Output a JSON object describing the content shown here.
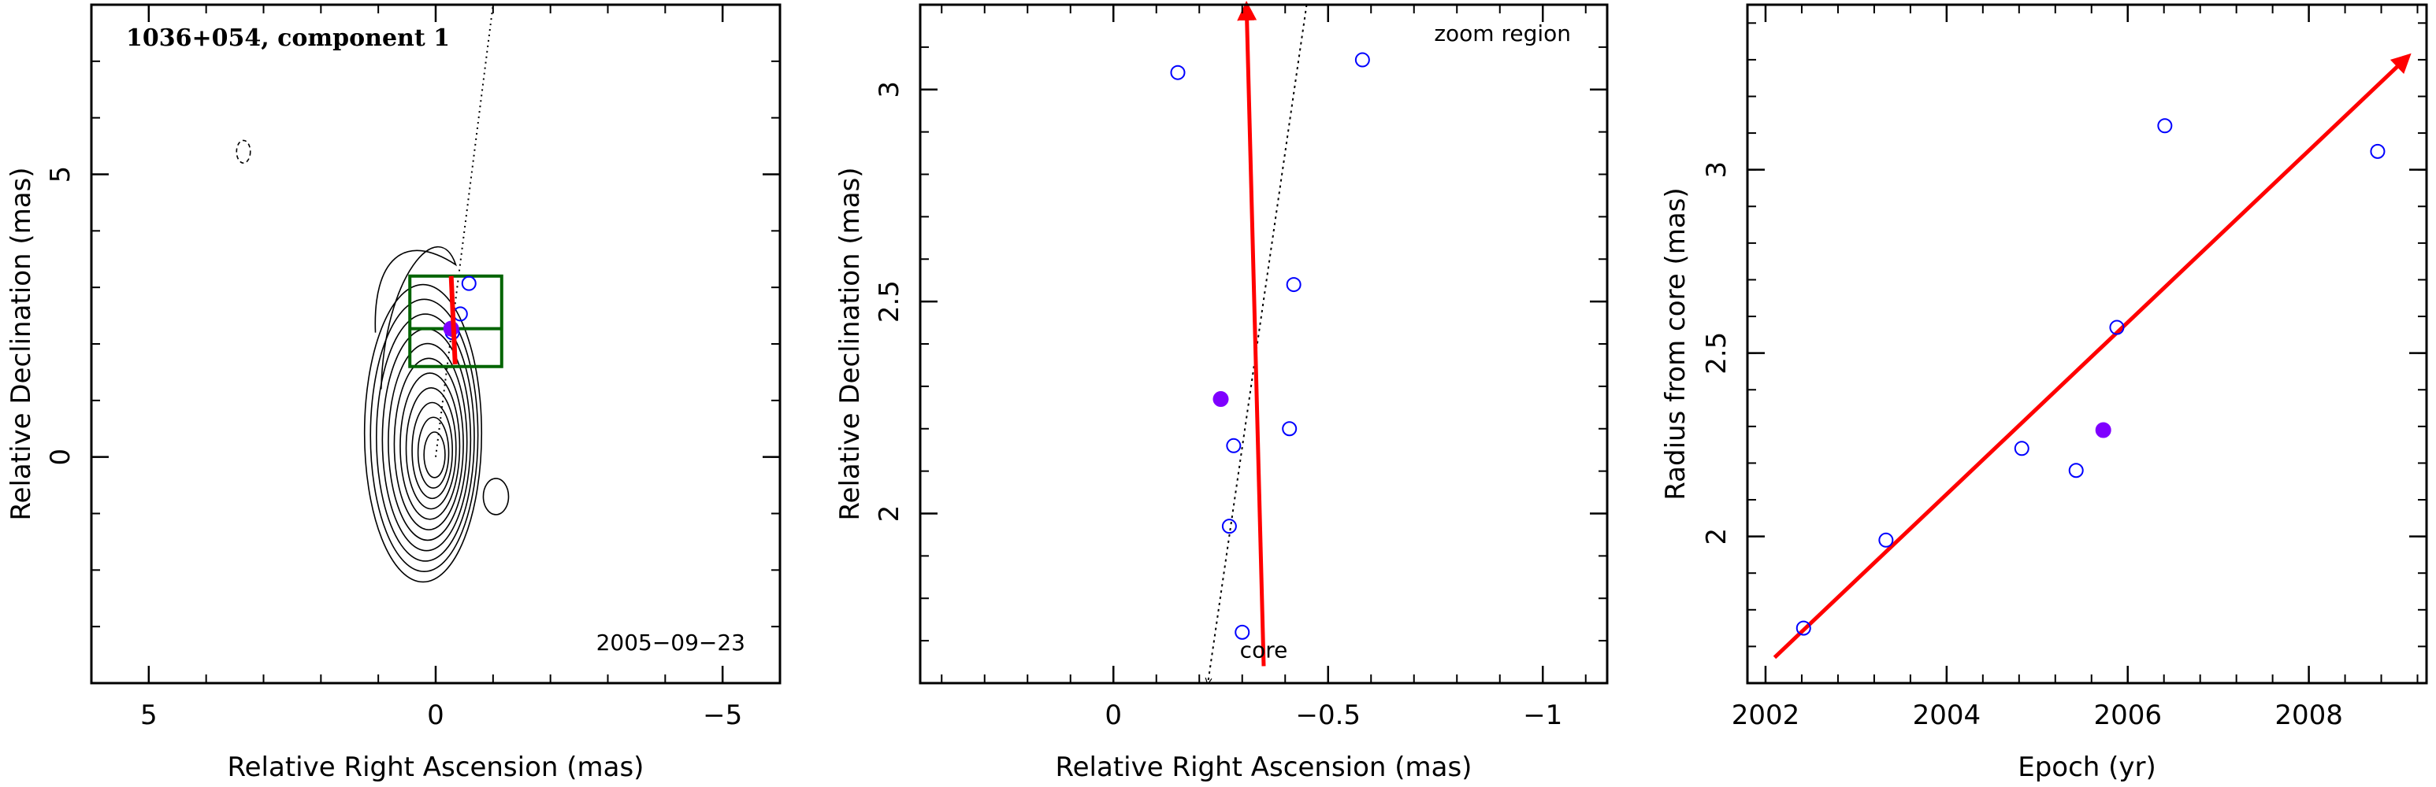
{
  "colors": {
    "axis": "#000000",
    "arrow": "#ff0000",
    "open_point": "#0000ff",
    "filled_point": "#7f00ff",
    "box": "#006400",
    "contour": "#000000"
  },
  "chart_data": [
    {
      "type": "contour",
      "title": "1036+054, component 1",
      "annotation": "2005−09−23",
      "xlabel": "Relative Right Ascension (mas)",
      "ylabel": "Relative Declination (mas)",
      "xlim": [
        6,
        -6
      ],
      "ylim": [
        -4,
        8
      ],
      "xticks": [
        5,
        0,
        -5
      ],
      "yticks": [
        0,
        5
      ],
      "x_tick_labels": [
        "5",
        "0",
        "−5"
      ],
      "y_tick_labels": [
        "0",
        "5"
      ],
      "contour_levels": 11,
      "jet_line": {
        "from": [
          0,
          0
        ],
        "to": [
          -1.0,
          8.0
        ]
      },
      "zoom_box": {
        "ra": [
          0.45,
          -1.15
        ],
        "dec": [
          1.6,
          3.2
        ],
        "mid_dec": 2.27
      },
      "motion_arrow": {
        "from": [
          -0.34,
          1.64
        ],
        "to": [
          -0.27,
          3.2
        ]
      },
      "points": [
        {
          "ra": -0.58,
          "dec": 3.07
        },
        {
          "ra": -0.43,
          "dec": 2.53
        },
        {
          "ra": -0.29,
          "dec": 2.2
        },
        {
          "ra": -0.27,
          "dec": 2.27,
          "filled": true
        }
      ]
    },
    {
      "type": "scatter",
      "annotation_top": "zoom region",
      "annotation_core": "core",
      "xlabel": "Relative Right Ascension (mas)",
      "ylabel": "Relative Declination (mas)",
      "xlim": [
        0.45,
        -1.15
      ],
      "ylim": [
        1.6,
        3.2
      ],
      "xticks": [
        0,
        -0.5,
        -1
      ],
      "yticks": [
        2,
        2.5,
        3
      ],
      "x_tick_labels": [
        "0",
        "−0.5",
        "−1"
      ],
      "y_tick_labels": [
        "2",
        "2.5",
        "3"
      ],
      "jet_line": {
        "from": [
          -0.22,
          1.6
        ],
        "to": [
          -0.45,
          3.2
        ]
      },
      "motion_arrow": {
        "from": [
          -0.35,
          1.64
        ],
        "to": [
          -0.31,
          3.2
        ]
      },
      "points": [
        {
          "ra": -0.15,
          "dec": 3.04
        },
        {
          "ra": -0.58,
          "dec": 3.07
        },
        {
          "ra": -0.42,
          "dec": 2.54
        },
        {
          "ra": -0.25,
          "dec": 2.27,
          "filled": true
        },
        {
          "ra": -0.41,
          "dec": 2.2
        },
        {
          "ra": -0.28,
          "dec": 2.16
        },
        {
          "ra": -0.27,
          "dec": 1.97
        },
        {
          "ra": -0.3,
          "dec": 1.72
        }
      ]
    },
    {
      "type": "scatter",
      "xlabel": "Epoch (yr)",
      "ylabel": "Radius from core (mas)",
      "xlim": [
        2001.8,
        2009.3
      ],
      "ylim": [
        1.6,
        3.45
      ],
      "xticks": [
        2002,
        2004,
        2006,
        2008
      ],
      "yticks": [
        2,
        2.5,
        3
      ],
      "x_tick_labels": [
        "2002",
        "2004",
        "2006",
        "2008"
      ],
      "y_tick_labels": [
        "2",
        "2.5",
        "3"
      ],
      "fit_arrow": {
        "from": [
          2002.1,
          1.67
        ],
        "to": [
          2009.1,
          3.31
        ]
      },
      "points": [
        {
          "epoch": 2002.42,
          "radius": 1.75
        },
        {
          "epoch": 2003.33,
          "radius": 1.99
        },
        {
          "epoch": 2004.83,
          "radius": 2.24
        },
        {
          "epoch": 2005.43,
          "radius": 2.18
        },
        {
          "epoch": 2005.73,
          "radius": 2.29,
          "filled": true
        },
        {
          "epoch": 2005.88,
          "radius": 2.57
        },
        {
          "epoch": 2006.41,
          "radius": 3.12
        },
        {
          "epoch": 2008.76,
          "radius": 3.05
        }
      ]
    }
  ]
}
